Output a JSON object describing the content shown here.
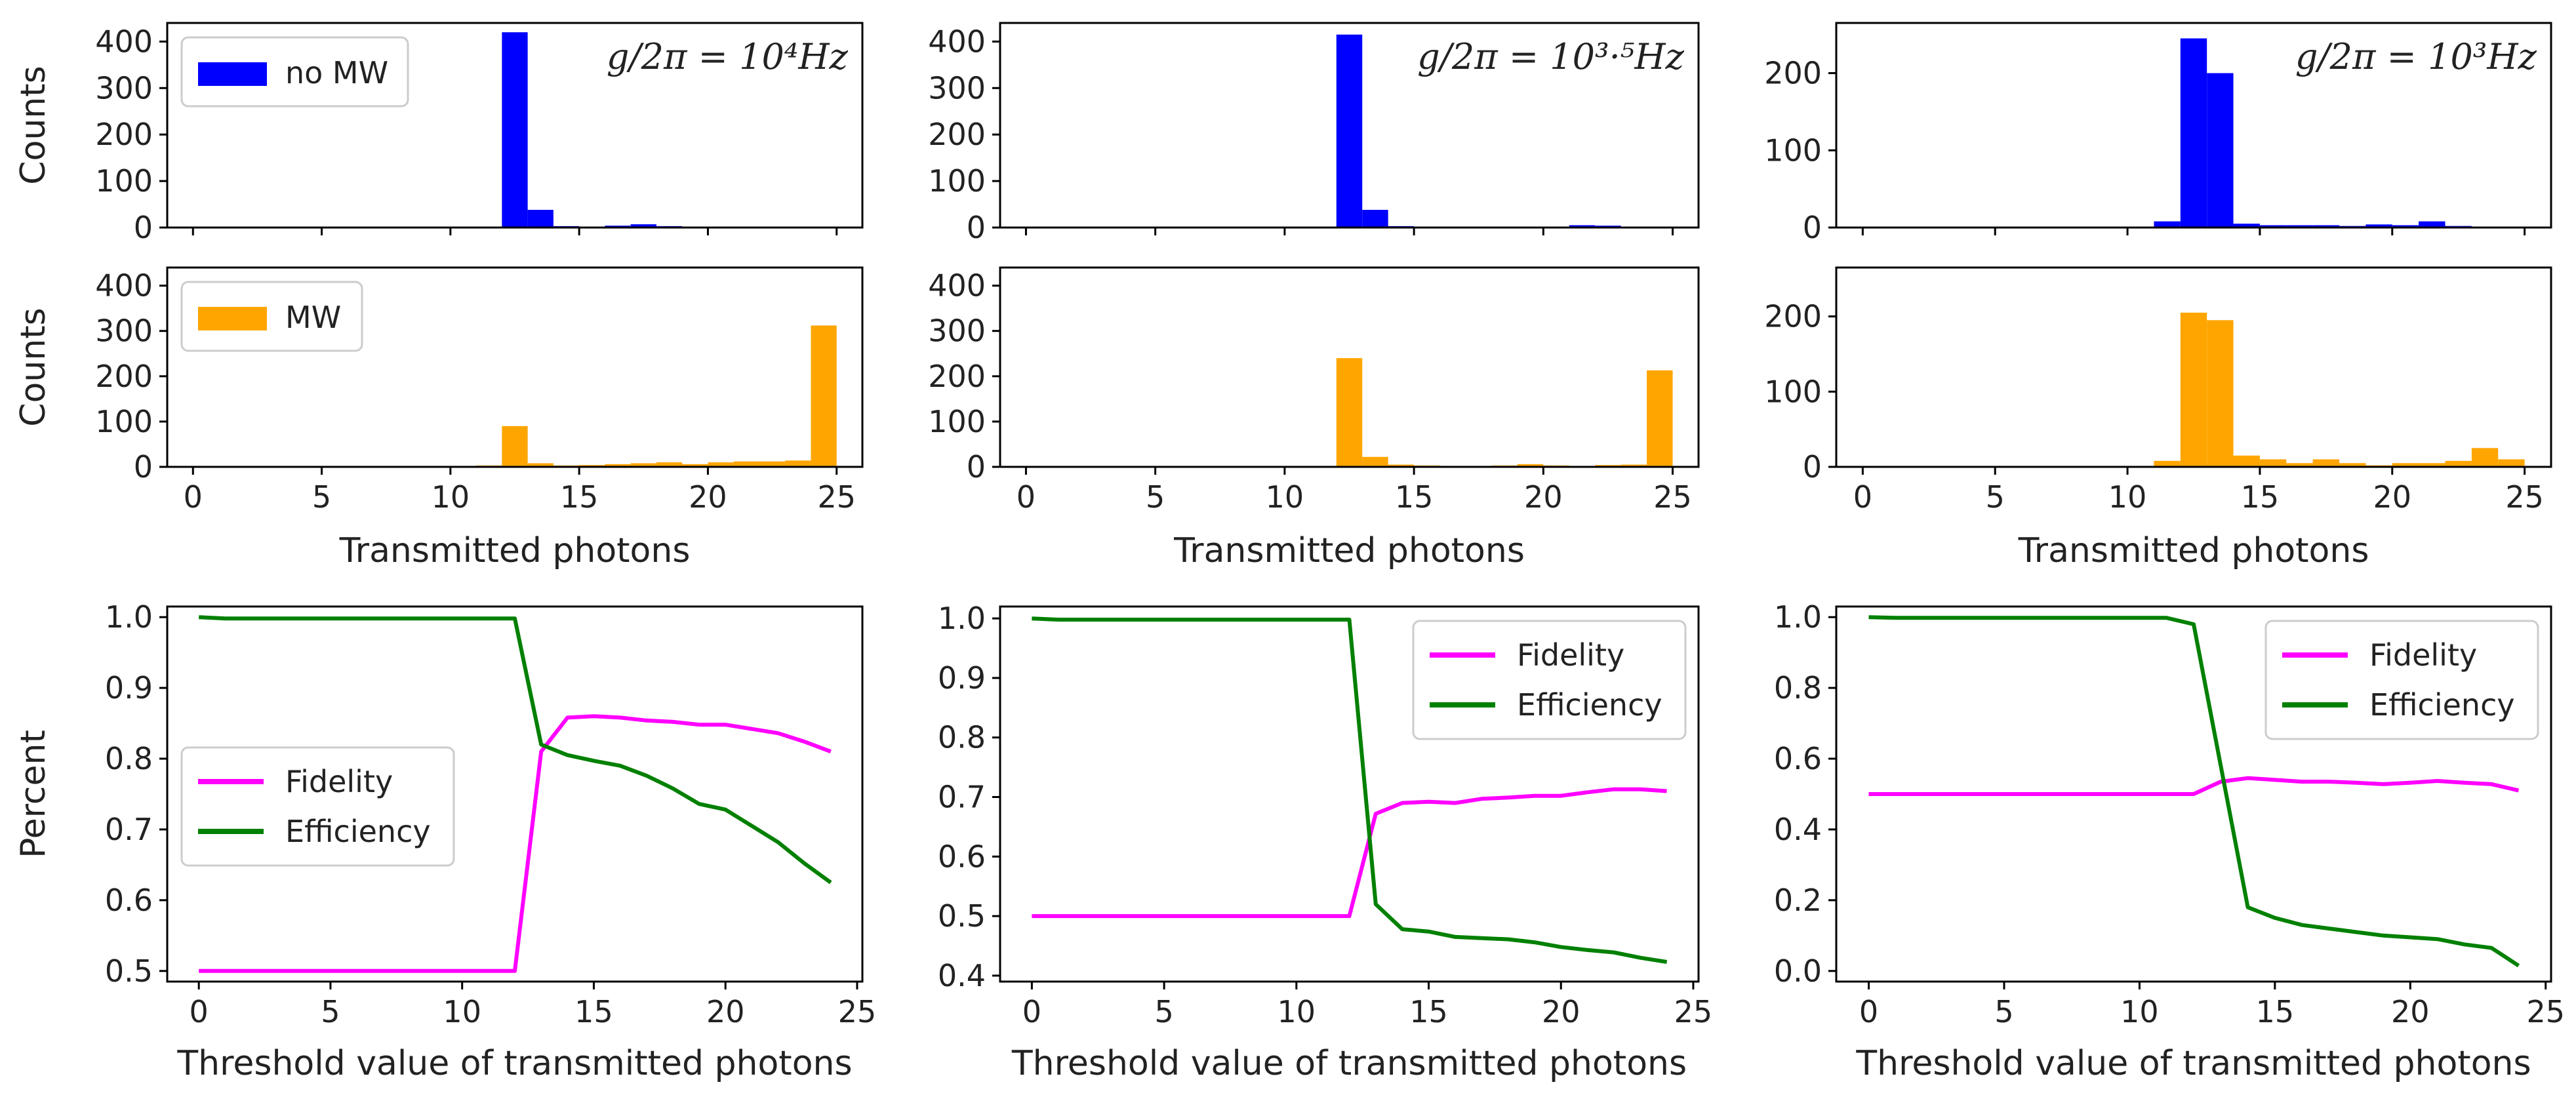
{
  "colors": {
    "no_mw": "#0000ff",
    "mw": "#ffa500",
    "fidelity": "#ff00ff",
    "efficiency": "#008000"
  },
  "chart_data": [
    {
      "id": "hist-no-mw-1e4",
      "type": "bar",
      "ylabel": "Counts",
      "ylim": [
        0,
        440
      ],
      "xlim": [
        -1,
        26
      ],
      "yticks": [
        0,
        100,
        200,
        300,
        400
      ],
      "xticks": [
        0,
        5,
        10,
        15,
        20,
        25
      ],
      "xticklabels": false,
      "annotation": "g/2π = 10⁴Hz",
      "legend": [
        {
          "label": "no MW",
          "color": "#0000ff"
        }
      ],
      "series": [
        {
          "name": "no MW",
          "color": "#0000ff",
          "x": [
            12,
            13,
            14,
            15,
            16,
            17,
            18,
            19,
            20,
            21,
            22
          ],
          "values": [
            420,
            38,
            3,
            2,
            4,
            7,
            3,
            1,
            1,
            1,
            1
          ]
        }
      ]
    },
    {
      "id": "hist-no-mw-1e3.5",
      "type": "bar",
      "ylabel": "",
      "ylim": [
        0,
        440
      ],
      "xlim": [
        -1,
        26
      ],
      "yticks": [
        0,
        100,
        200,
        300,
        400
      ],
      "xticks": [
        0,
        5,
        10,
        15,
        20,
        25
      ],
      "xticklabels": false,
      "annotation": "g/2π = 10³·⁵Hz",
      "series": [
        {
          "name": "no MW",
          "color": "#0000ff",
          "x": [
            12,
            13,
            14,
            15,
            16,
            17,
            18,
            19,
            20,
            21,
            22
          ],
          "values": [
            415,
            38,
            3,
            2,
            2,
            2,
            1,
            1,
            2,
            5,
            4
          ]
        }
      ]
    },
    {
      "id": "hist-no-mw-1e3",
      "type": "bar",
      "ylabel": "",
      "ylim": [
        0,
        265
      ],
      "xlim": [
        -1,
        26
      ],
      "yticks": [
        0,
        100,
        200
      ],
      "xticks": [
        0,
        5,
        10,
        15,
        20,
        25
      ],
      "xticklabels": false,
      "annotation": "g/2π = 10³Hz",
      "series": [
        {
          "name": "no MW",
          "color": "#0000ff",
          "x": [
            11,
            12,
            13,
            14,
            15,
            16,
            17,
            18,
            19,
            20,
            21,
            22
          ],
          "values": [
            8,
            245,
            200,
            5,
            3,
            3,
            3,
            2,
            4,
            3,
            8,
            2
          ]
        }
      ]
    },
    {
      "id": "hist-mw-1e4",
      "type": "bar",
      "ylabel": "Counts",
      "xlabel": "Transmitted photons",
      "ylim": [
        0,
        440
      ],
      "xlim": [
        -1,
        26
      ],
      "yticks": [
        0,
        100,
        200,
        300,
        400
      ],
      "xticks": [
        0,
        5,
        10,
        15,
        20,
        25
      ],
      "xticklabels": true,
      "legend": [
        {
          "label": "MW",
          "color": "#ffa500"
        }
      ],
      "series": [
        {
          "name": "MW",
          "color": "#ffa500",
          "x": [
            11,
            12,
            13,
            14,
            15,
            16,
            17,
            18,
            19,
            20,
            21,
            22,
            23,
            24
          ],
          "values": [
            3,
            90,
            8,
            3,
            4,
            6,
            8,
            10,
            6,
            10,
            12,
            12,
            14,
            312
          ]
        }
      ]
    },
    {
      "id": "hist-mw-1e3.5",
      "type": "bar",
      "ylabel": "",
      "xlabel": "Transmitted photons",
      "ylim": [
        0,
        440
      ],
      "xlim": [
        -1,
        26
      ],
      "yticks": [
        0,
        100,
        200,
        300,
        400
      ],
      "xticks": [
        0,
        5,
        10,
        15,
        20,
        25
      ],
      "xticklabels": true,
      "series": [
        {
          "name": "MW",
          "color": "#ffa500",
          "x": [
            12,
            13,
            14,
            15,
            16,
            17,
            18,
            19,
            20,
            21,
            22,
            23,
            24
          ],
          "values": [
            240,
            22,
            5,
            3,
            2,
            2,
            3,
            6,
            3,
            2,
            4,
            5,
            213
          ]
        }
      ]
    },
    {
      "id": "hist-mw-1e3",
      "type": "bar",
      "ylabel": "",
      "xlabel": "Transmitted photons",
      "ylim": [
        0,
        265
      ],
      "xlim": [
        -1,
        26
      ],
      "yticks": [
        0,
        100,
        200
      ],
      "xticks": [
        0,
        5,
        10,
        15,
        20,
        25
      ],
      "xticklabels": true,
      "series": [
        {
          "name": "MW",
          "color": "#ffa500",
          "x": [
            11,
            12,
            13,
            14,
            15,
            16,
            17,
            18,
            19,
            20,
            21,
            22,
            23,
            24
          ],
          "values": [
            8,
            205,
            195,
            15,
            10,
            5,
            10,
            5,
            2,
            5,
            5,
            8,
            25,
            10
          ]
        }
      ]
    },
    {
      "id": "line-1e4",
      "type": "line",
      "ylabel": "Percent",
      "xlabel": "Threshold value of transmitted photons",
      "ylim": [
        0.485,
        1.015
      ],
      "xlim": [
        -1.2,
        25.2
      ],
      "yticks": [
        0.5,
        0.6,
        0.7,
        0.8,
        0.9,
        1.0
      ],
      "ytick_labels": [
        "0.5",
        "0.6",
        "0.7",
        "0.8",
        "0.9",
        "1.0"
      ],
      "xticks": [
        0,
        5,
        10,
        15,
        20,
        25
      ],
      "legend_position": "center-left",
      "x": [
        0,
        1,
        2,
        3,
        4,
        5,
        6,
        7,
        8,
        9,
        10,
        11,
        12,
        13,
        14,
        15,
        16,
        17,
        18,
        19,
        20,
        21,
        22,
        23,
        24
      ],
      "series": [
        {
          "name": "Fidelity",
          "color": "#ff00ff",
          "values": [
            0.5,
            0.5,
            0.5,
            0.5,
            0.5,
            0.5,
            0.5,
            0.5,
            0.5,
            0.5,
            0.5,
            0.5,
            0.5,
            0.81,
            0.858,
            0.86,
            0.858,
            0.854,
            0.852,
            0.848,
            0.848,
            0.842,
            0.836,
            0.824,
            0.81
          ]
        },
        {
          "name": "Efficiency",
          "color": "#008000",
          "values": [
            1.0,
            0.998,
            0.998,
            0.998,
            0.998,
            0.998,
            0.998,
            0.998,
            0.998,
            0.998,
            0.998,
            0.998,
            0.998,
            0.82,
            0.805,
            0.797,
            0.79,
            0.776,
            0.758,
            0.736,
            0.728,
            0.705,
            0.682,
            0.652,
            0.625
          ]
        }
      ]
    },
    {
      "id": "line-1e3.5",
      "type": "line",
      "ylabel": "",
      "xlabel": "Threshold value of transmitted photons",
      "ylim": [
        0.39,
        1.02
      ],
      "xlim": [
        -1.2,
        25.2
      ],
      "yticks": [
        0.4,
        0.5,
        0.6,
        0.7,
        0.8,
        0.9,
        1.0
      ],
      "ytick_labels": [
        "0.4",
        "0.5",
        "0.6",
        "0.7",
        "0.8",
        "0.9",
        "1.0"
      ],
      "xticks": [
        0,
        5,
        10,
        15,
        20,
        25
      ],
      "legend_position": "top-right",
      "x": [
        0,
        1,
        2,
        3,
        4,
        5,
        6,
        7,
        8,
        9,
        10,
        11,
        12,
        13,
        14,
        15,
        16,
        17,
        18,
        19,
        20,
        21,
        22,
        23,
        24
      ],
      "series": [
        {
          "name": "Fidelity",
          "color": "#ff00ff",
          "values": [
            0.5,
            0.5,
            0.5,
            0.5,
            0.5,
            0.5,
            0.5,
            0.5,
            0.5,
            0.5,
            0.5,
            0.5,
            0.5,
            0.672,
            0.69,
            0.692,
            0.69,
            0.697,
            0.699,
            0.702,
            0.702,
            0.708,
            0.713,
            0.713,
            0.71
          ]
        },
        {
          "name": "Efficiency",
          "color": "#008000",
          "values": [
            1.0,
            0.998,
            0.998,
            0.998,
            0.998,
            0.998,
            0.998,
            0.998,
            0.998,
            0.998,
            0.998,
            0.998,
            0.998,
            0.52,
            0.478,
            0.474,
            0.465,
            0.463,
            0.461,
            0.456,
            0.448,
            0.443,
            0.439,
            0.43,
            0.423
          ]
        }
      ]
    },
    {
      "id": "line-1e3",
      "type": "line",
      "ylabel": "",
      "xlabel": "Threshold value of transmitted photons",
      "ylim": [
        -0.03,
        1.03
      ],
      "xlim": [
        -1.2,
        25.2
      ],
      "yticks": [
        0.0,
        0.2,
        0.4,
        0.6,
        0.8,
        1.0
      ],
      "ytick_labels": [
        "0.0",
        "0.2",
        "0.4",
        "0.6",
        "0.8",
        "1.0"
      ],
      "xticks": [
        0,
        5,
        10,
        15,
        20,
        25
      ],
      "legend_position": "top-right",
      "x": [
        0,
        1,
        2,
        3,
        4,
        5,
        6,
        7,
        8,
        9,
        10,
        11,
        12,
        13,
        14,
        15,
        16,
        17,
        18,
        19,
        20,
        21,
        22,
        23,
        24
      ],
      "series": [
        {
          "name": "Fidelity",
          "color": "#ff00ff",
          "values": [
            0.5,
            0.5,
            0.5,
            0.5,
            0.5,
            0.5,
            0.5,
            0.5,
            0.5,
            0.5,
            0.5,
            0.5,
            0.5,
            0.535,
            0.545,
            0.54,
            0.535,
            0.535,
            0.532,
            0.528,
            0.532,
            0.537,
            0.532,
            0.528,
            0.51
          ]
        },
        {
          "name": "Efficiency",
          "color": "#008000",
          "values": [
            1.0,
            0.998,
            0.998,
            0.998,
            0.998,
            0.998,
            0.998,
            0.998,
            0.998,
            0.998,
            0.998,
            0.998,
            0.98,
            0.58,
            0.18,
            0.15,
            0.13,
            0.12,
            0.11,
            0.1,
            0.095,
            0.09,
            0.075,
            0.065,
            0.015
          ]
        }
      ]
    }
  ]
}
